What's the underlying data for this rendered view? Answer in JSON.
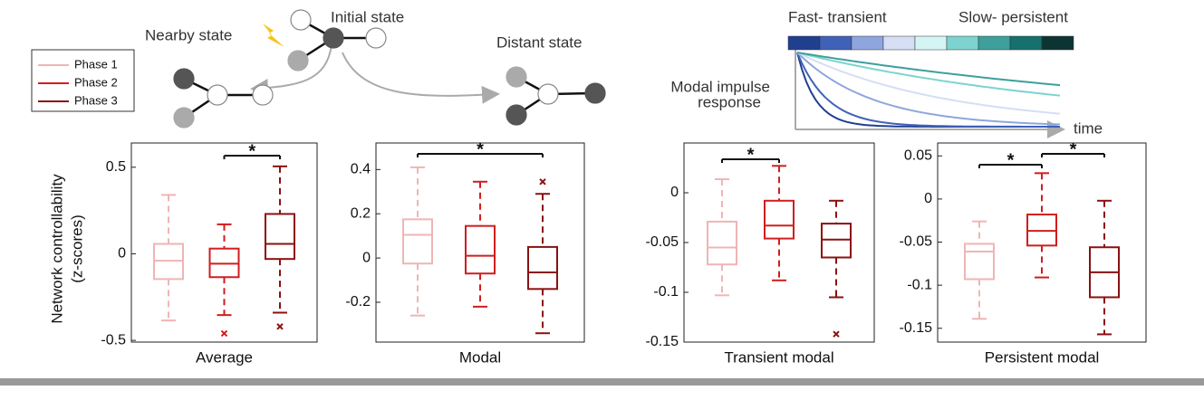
{
  "legend_chart": 0,
  "diagram": {
    "nearby": "Nearby state",
    "initial": "Initial state",
    "distant": "Distant state"
  },
  "colorbar": {
    "left_label": "Fast- transient",
    "right_label": "Slow- persistent",
    "colors": [
      "#213f8f",
      "#3f62b8",
      "#8ea6dd",
      "#d5def4",
      "#d4f5f3",
      "#7dd3cf",
      "#3e9f9c",
      "#16706e",
      "#0c3433"
    ]
  },
  "impulse": {
    "ylabel": [
      "Modal impulse",
      "response"
    ],
    "xlabel": "time"
  },
  "ylabel": [
    "Network controllability",
    "(z-scores)"
  ],
  "chart_data": [
    {
      "type": "box",
      "xlabel": "Average",
      "ylim": [
        -0.51,
        0.64
      ],
      "yticks": [
        -0.5,
        0,
        0.5
      ],
      "series": [
        {
          "name": "Phase 1",
          "color": "#efb5b5",
          "whisker_low": -0.385,
          "q1": -0.146,
          "median": -0.04,
          "q3": 0.057,
          "whisker_high": 0.34
        },
        {
          "name": "Phase 2",
          "color": "#d01e1e",
          "whisker_low": -0.354,
          "q1": -0.135,
          "median": -0.057,
          "q3": 0.03,
          "whisker_high": 0.17,
          "outliers": [
            -0.46
          ]
        },
        {
          "name": "Phase 3",
          "color": "#8a1111",
          "whisker_low": -0.34,
          "q1": -0.03,
          "median": 0.057,
          "q3": 0.23,
          "whisker_high": 0.505,
          "outliers": [
            -0.42
          ]
        }
      ],
      "annotations": [
        {
          "text": "*",
          "between": [
            "Phase 2",
            "Phase 3"
          ]
        }
      ]
    },
    {
      "type": "box",
      "xlabel": "Modal",
      "ylim": [
        -0.38,
        0.52
      ],
      "yticks": [
        -0.2,
        0,
        0.2,
        0.4
      ],
      "series": [
        {
          "name": "Phase 1",
          "color": "#efb5b5",
          "whisker_low": -0.26,
          "q1": -0.025,
          "median": 0.105,
          "q3": 0.175,
          "whisker_high": 0.41
        },
        {
          "name": "Phase 2",
          "color": "#d01e1e",
          "whisker_low": -0.22,
          "q1": -0.07,
          "median": 0.01,
          "q3": 0.145,
          "whisker_high": 0.345
        },
        {
          "name": "Phase 3",
          "color": "#8a1111",
          "whisker_low": -0.34,
          "q1": -0.14,
          "median": -0.065,
          "q3": 0.05,
          "whisker_high": 0.29,
          "outliers": [
            0.345
          ]
        }
      ],
      "annotations": [
        {
          "text": "*",
          "between": [
            "Phase 1",
            "Phase 3"
          ]
        }
      ]
    },
    {
      "type": "box",
      "xlabel": "Transient modal",
      "ylim": [
        -0.15,
        0.05
      ],
      "yticks": [
        -0.15,
        -0.1,
        -0.05,
        0
      ],
      "series": [
        {
          "name": "Phase 1",
          "color": "#efb5b5",
          "whisker_low": -0.103,
          "q1": -0.072,
          "median": -0.055,
          "q3": -0.029,
          "whisker_high": 0.0136
        },
        {
          "name": "Phase 2",
          "color": "#d01e1e",
          "whisker_low": -0.088,
          "q1": -0.046,
          "median": -0.033,
          "q3": -0.008,
          "whisker_high": 0.027
        },
        {
          "name": "Phase 3",
          "color": "#8a1111",
          "whisker_low": -0.105,
          "q1": -0.065,
          "median": -0.047,
          "q3": -0.031,
          "whisker_high": -0.008,
          "outliers": [
            -0.142
          ]
        }
      ],
      "annotations": [
        {
          "text": "*",
          "between": [
            "Phase 1",
            "Phase 2"
          ]
        }
      ]
    },
    {
      "type": "box",
      "xlabel": "Persistent modal",
      "ylim": [
        -0.166,
        0.065
      ],
      "yticks": [
        -0.15,
        -0.1,
        -0.05,
        0,
        0.05
      ],
      "series": [
        {
          "name": "Phase 1",
          "color": "#efb5b5",
          "whisker_low": -0.139,
          "q1": -0.093,
          "median": -0.061,
          "q3": -0.052,
          "whisker_high": -0.026
        },
        {
          "name": "Phase 2",
          "color": "#d01e1e",
          "whisker_low": -0.091,
          "q1": -0.054,
          "median": -0.037,
          "q3": -0.018,
          "whisker_high": 0.03
        },
        {
          "name": "Phase 3",
          "color": "#8a1111",
          "whisker_low": -0.157,
          "q1": -0.114,
          "median": -0.085,
          "q3": -0.056,
          "whisker_high": -0.002
        }
      ],
      "annotations": [
        {
          "text": "*",
          "between": [
            "Phase 1",
            "Phase 2"
          ]
        },
        {
          "text": "*",
          "between": [
            "Phase 2",
            "Phase 3"
          ]
        }
      ]
    }
  ]
}
